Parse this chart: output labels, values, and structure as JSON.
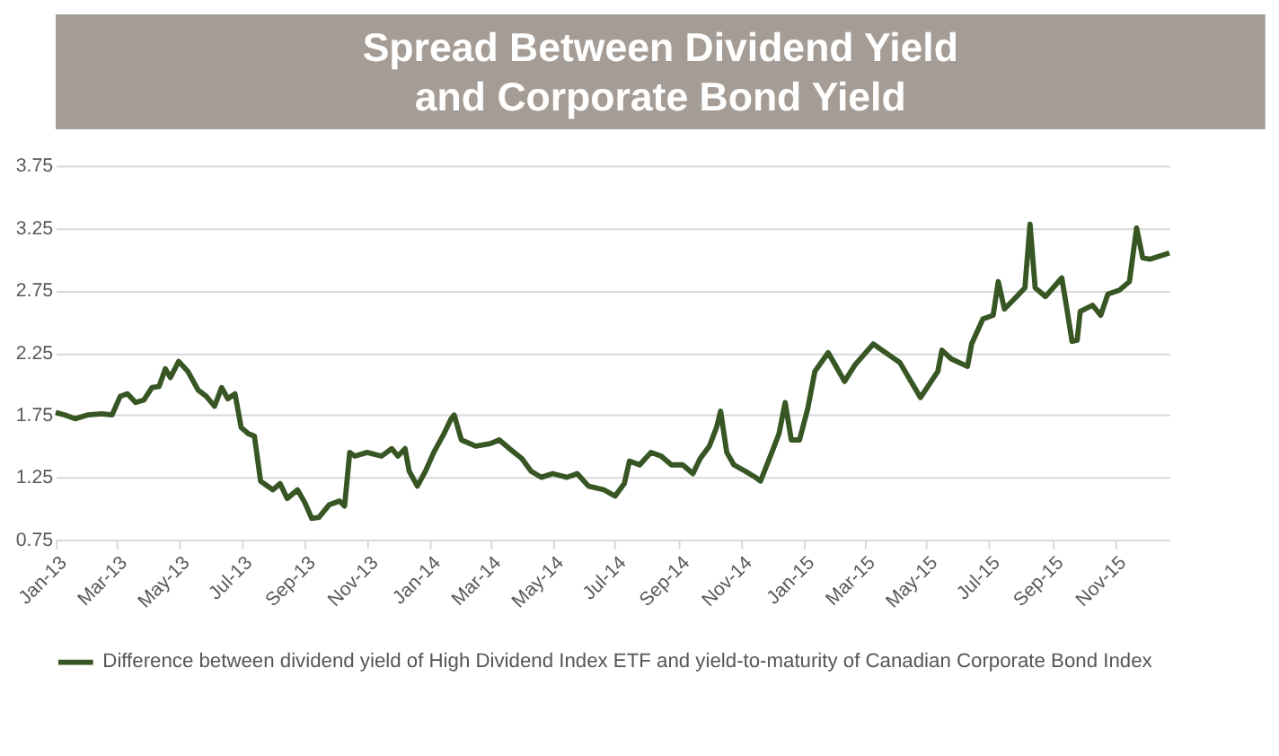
{
  "chart_data": {
    "type": "line",
    "title": "Spread Between Dividend Yield and Corporate Bond Yield",
    "x": [
      "2013-01-01",
      "2013-01-10",
      "2013-01-20",
      "2013-02-01",
      "2013-02-15",
      "2013-02-25",
      "2013-03-05",
      "2013-03-12",
      "2013-03-20",
      "2013-03-28",
      "2013-04-05",
      "2013-04-12",
      "2013-04-18",
      "2013-04-23",
      "2013-05-01",
      "2013-05-10",
      "2013-05-20",
      "2013-05-28",
      "2013-06-05",
      "2013-06-12",
      "2013-06-18",
      "2013-06-25",
      "2013-07-01",
      "2013-07-08",
      "2013-07-14",
      "2013-07-20",
      "2013-08-01",
      "2013-08-08",
      "2013-08-15",
      "2013-08-25",
      "2013-09-01",
      "2013-09-08",
      "2013-09-15",
      "2013-09-25",
      "2013-10-05",
      "2013-10-10",
      "2013-10-15",
      "2013-10-20",
      "2013-11-01",
      "2013-11-15",
      "2013-11-25",
      "2013-12-01",
      "2013-12-08",
      "2013-12-12",
      "2013-12-20",
      "2013-12-28",
      "2014-01-05",
      "2014-01-15",
      "2014-01-22",
      "2014-01-25",
      "2014-02-01",
      "2014-02-15",
      "2014-03-01",
      "2014-03-10",
      "2014-03-20",
      "2014-04-01",
      "2014-04-10",
      "2014-04-20",
      "2014-05-01",
      "2014-05-15",
      "2014-05-25",
      "2014-06-05",
      "2014-06-20",
      "2014-07-01",
      "2014-07-10",
      "2014-07-15",
      "2014-07-25",
      "2014-08-05",
      "2014-08-15",
      "2014-08-25",
      "2014-09-05",
      "2014-09-15",
      "2014-09-22",
      "2014-10-01",
      "2014-10-08",
      "2014-10-12",
      "2014-10-18",
      "2014-10-25",
      "2014-11-05",
      "2014-11-15",
      "2014-11-20",
      "2014-12-01",
      "2014-12-08",
      "2014-12-14",
      "2014-12-20",
      "2014-12-28",
      "2015-01-05",
      "2015-01-12",
      "2015-01-25",
      "2015-02-10",
      "2015-02-20",
      "2015-03-10",
      "2015-04-05",
      "2015-04-25",
      "2015-05-12",
      "2015-05-16",
      "2015-05-25",
      "2015-06-10",
      "2015-06-14",
      "2015-06-25",
      "2015-07-05",
      "2015-07-10",
      "2015-07-16",
      "2015-07-28",
      "2015-08-05",
      "2015-08-10",
      "2015-08-15",
      "2015-08-25",
      "2015-09-10",
      "2015-09-15",
      "2015-09-20",
      "2015-09-25",
      "2015-09-28",
      "2015-10-10",
      "2015-10-18",
      "2015-10-25",
      "2015-11-05",
      "2015-11-15",
      "2015-11-22",
      "2015-11-28",
      "2015-12-05",
      "2015-12-24"
    ],
    "series": [
      {
        "name": "Difference between dividend yield of High Dividend Index ETF and yield-to-maturity of Canadian Corporate Bond Index",
        "color": "#375623",
        "values": [
          1.77,
          1.75,
          1.72,
          1.75,
          1.76,
          1.75,
          1.9,
          1.92,
          1.85,
          1.87,
          1.97,
          1.98,
          2.12,
          2.05,
          2.18,
          2.1,
          1.95,
          1.9,
          1.82,
          1.97,
          1.88,
          1.92,
          1.65,
          1.6,
          1.58,
          1.22,
          1.15,
          1.2,
          1.08,
          1.15,
          1.05,
          0.92,
          0.93,
          1.03,
          1.06,
          1.02,
          1.45,
          1.42,
          1.45,
          1.42,
          1.48,
          1.42,
          1.48,
          1.3,
          1.18,
          1.3,
          1.45,
          1.6,
          1.72,
          1.75,
          1.55,
          1.5,
          1.52,
          1.55,
          1.48,
          1.4,
          1.3,
          1.25,
          1.28,
          1.25,
          1.28,
          1.18,
          1.15,
          1.1,
          1.2,
          1.38,
          1.35,
          1.45,
          1.42,
          1.35,
          1.35,
          1.28,
          1.4,
          1.5,
          1.65,
          1.78,
          1.45,
          1.35,
          1.3,
          1.25,
          1.22,
          1.45,
          1.6,
          1.85,
          1.55,
          1.55,
          1.8,
          2.1,
          2.25,
          2.02,
          2.15,
          2.32,
          2.17,
          1.89,
          2.1,
          2.27,
          2.2,
          2.14,
          2.32,
          2.52,
          2.55,
          2.82,
          2.6,
          2.7,
          2.77,
          3.28,
          2.77,
          2.7,
          2.85,
          2.6,
          2.34,
          2.35,
          2.58,
          2.63,
          2.55,
          2.72,
          2.75,
          2.82,
          3.25,
          3.01,
          3.0,
          3.05
        ]
      }
    ],
    "xlim": [
      "2013-01-01",
      "2015-12-24"
    ],
    "xticks": [
      {
        "value": "2013-01-01",
        "label": "Jan-13"
      },
      {
        "value": "2013-03-01",
        "label": "Mar-13"
      },
      {
        "value": "2013-05-01",
        "label": "May-13"
      },
      {
        "value": "2013-07-01",
        "label": "Jul-13"
      },
      {
        "value": "2013-09-01",
        "label": "Sep-13"
      },
      {
        "value": "2013-11-01",
        "label": "Nov-13"
      },
      {
        "value": "2014-01-01",
        "label": "Jan-14"
      },
      {
        "value": "2014-03-01",
        "label": "Mar-14"
      },
      {
        "value": "2014-05-01",
        "label": "May-14"
      },
      {
        "value": "2014-07-01",
        "label": "Jul-14"
      },
      {
        "value": "2014-09-01",
        "label": "Sep-14"
      },
      {
        "value": "2014-11-01",
        "label": "Nov-14"
      },
      {
        "value": "2015-01-01",
        "label": "Jan-15"
      },
      {
        "value": "2015-03-01",
        "label": "Mar-15"
      },
      {
        "value": "2015-05-01",
        "label": "May-15"
      },
      {
        "value": "2015-07-01",
        "label": "Jul-15"
      },
      {
        "value": "2015-09-01",
        "label": "Sep-15"
      },
      {
        "value": "2015-11-01",
        "label": "Nov-15"
      }
    ],
    "ylim": [
      0.75,
      3.75
    ],
    "yticks": [
      {
        "value": 0.75,
        "label": "0.75"
      },
      {
        "value": 1.25,
        "label": "1.25"
      },
      {
        "value": 1.75,
        "label": "1.75"
      },
      {
        "value": 2.25,
        "label": "2.25"
      },
      {
        "value": 2.75,
        "label": "2.75"
      },
      {
        "value": 3.25,
        "label": "3.25"
      },
      {
        "value": 3.75,
        "label": "3.75"
      }
    ],
    "grid": "y",
    "legend": "bottom",
    "line_style": "solid",
    "marker": "none"
  }
}
